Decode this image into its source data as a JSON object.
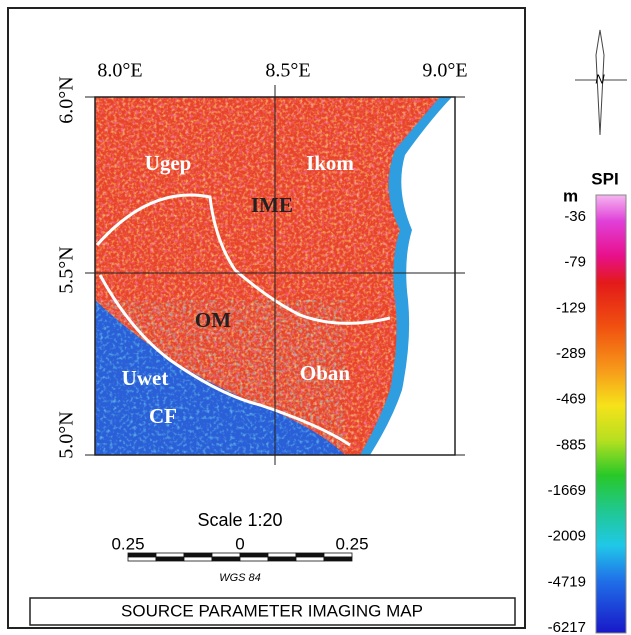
{
  "map": {
    "longitude_labels": [
      "8.0°E",
      "8.5°E",
      "9.0°E"
    ],
    "latitude_labels": [
      "6.0°N",
      "5.5°N",
      "5.0°N"
    ],
    "regions": [
      "Ugep",
      "Ikom",
      "IME",
      "OM",
      "Uwet",
      "CF",
      "Oban"
    ],
    "north_label": "N",
    "scale": {
      "title": "Scale 1:20",
      "labels": [
        "0.25",
        "0",
        "0.25"
      ],
      "datum": "WGS 84"
    },
    "caption": "SOURCE PARAMETER IMAGING MAP",
    "legend": {
      "unit": "m",
      "title": "SPI",
      "labels": [
        "-36",
        "-79",
        "-129",
        "-289",
        "-469",
        "-885",
        "-1669",
        "-2009",
        "-4719",
        "-6217"
      ]
    }
  }
}
